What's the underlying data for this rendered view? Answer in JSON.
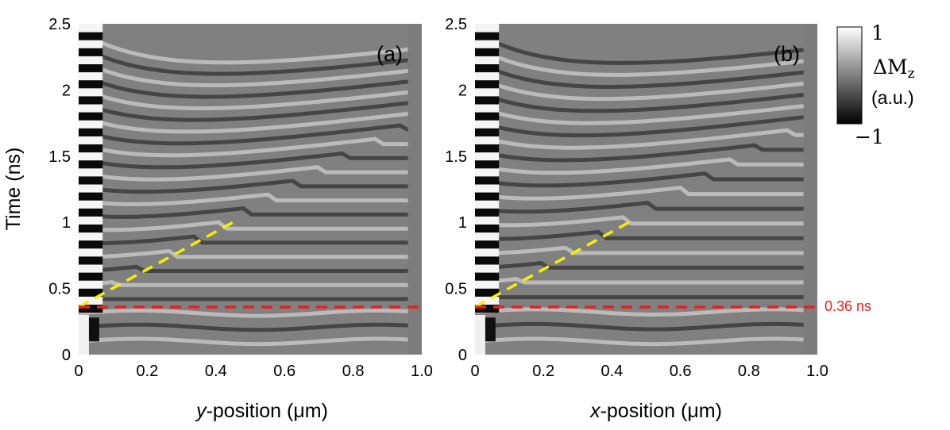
{
  "chart_data": [
    {
      "type": "heatmap",
      "panel_label": "(a)",
      "xlabel_italic": "y",
      "xlabel_rest": "-position (μm)",
      "ylabel": "Time (ns)",
      "xlim": [
        0,
        1.0
      ],
      "ylim": [
        0,
        2.5
      ],
      "xticks": [
        "0",
        "0.2",
        "0.4",
        "0.6",
        "0.8",
        "1.0"
      ],
      "yticks": [
        "0",
        "0.5",
        "1",
        "1.5",
        "2",
        "2.5"
      ],
      "data_extent_x": [
        0,
        0.96
      ],
      "stripe_count": 23,
      "wavefront_guide": {
        "color": "#f5f000",
        "from": [
          0.0,
          0.36
        ],
        "to": [
          0.45,
          1.0
        ]
      },
      "threshold_line": {
        "color": "#e8201e",
        "y": 0.36,
        "label": ""
      }
    },
    {
      "type": "heatmap",
      "panel_label": "(b)",
      "xlabel_italic": "x",
      "xlabel_rest": "-position (μm)",
      "ylabel": "",
      "xlim": [
        0,
        1.0
      ],
      "ylim": [
        0,
        2.5
      ],
      "xticks": [
        "0",
        "0.2",
        "0.4",
        "0.6",
        "0.8",
        "1.0"
      ],
      "yticks": [
        "0",
        "0.5",
        "1",
        "1.5",
        "2",
        "2.5"
      ],
      "data_extent_x": [
        0,
        0.96
      ],
      "stripe_count": 22,
      "wavefront_guide": {
        "color": "#f5f000",
        "from": [
          0.0,
          0.36
        ],
        "to": [
          0.45,
          1.0
        ]
      },
      "threshold_line": {
        "color": "#e8201e",
        "y": 0.36,
        "label": "0.36 ns"
      }
    }
  ],
  "colorbar": {
    "max_label": "1",
    "min_label": "−1",
    "quantity": "ΔM",
    "subscript": "z",
    "unit": "(a.u.)",
    "colors": [
      "#ffffff",
      "#000000"
    ]
  },
  "colors": {
    "background_field": "#808080",
    "red_line": "#e8201e",
    "yellow_line": "#f5f000"
  }
}
